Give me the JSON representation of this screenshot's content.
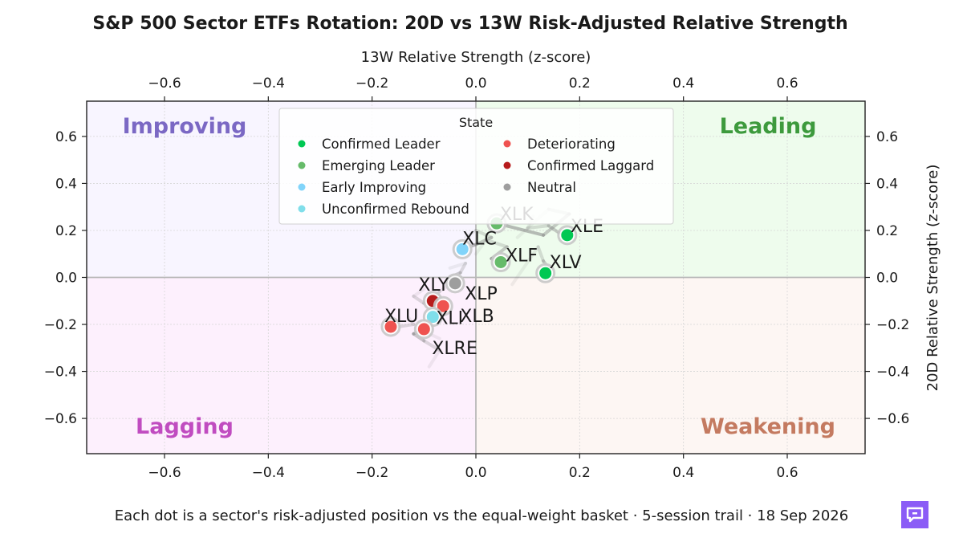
{
  "chart_data": {
    "type": "scatter",
    "title": "S&P 500 Sector ETFs Rotation: 20D vs 13W Risk-Adjusted Relative Strength",
    "xlabel": "13W Relative Strength (z-score)",
    "ylabel": "20D Relative Strength (z-score)",
    "xlim": [
      -0.75,
      0.75
    ],
    "ylim": [
      -0.75,
      0.75
    ],
    "x_ticks": [
      -0.6,
      -0.4,
      -0.2,
      0.0,
      0.2,
      0.4,
      0.6
    ],
    "y_ticks": [
      -0.6,
      -0.4,
      -0.2,
      0.0,
      0.2,
      0.4,
      0.6
    ],
    "x_tick_labels": [
      "−0.6",
      "−0.4",
      "−0.2",
      "0.0",
      "0.2",
      "0.4",
      "0.6"
    ],
    "y_tick_labels": [
      "−0.6",
      "−0.4",
      "−0.2",
      "0.0",
      "0.2",
      "0.4",
      "0.6"
    ],
    "grid": true,
    "quadrants": {
      "top_left": {
        "label": "Improving",
        "color": "#7b68c4",
        "fill": "#f8f5ff"
      },
      "top_right": {
        "label": "Leading",
        "color": "#3d9a3d",
        "fill": "#eefced"
      },
      "bottom_left": {
        "label": "Lagging",
        "color": "#c04cc0",
        "fill": "#fdf0fd"
      },
      "bottom_right": {
        "label": "Weakening",
        "color": "#c47a60",
        "fill": "#fdf6f3"
      }
    },
    "legend": {
      "title": "State",
      "placement": "top-center",
      "entries": [
        {
          "label": "Confirmed Leader",
          "color": "#00c853"
        },
        {
          "label": "Emerging Leader",
          "color": "#66bb6a"
        },
        {
          "label": "Early Improving",
          "color": "#81d4fa"
        },
        {
          "label": "Unconfirmed Rebound",
          "color": "#80deea"
        },
        {
          "label": "Deteriorating",
          "color": "#ef5350"
        },
        {
          "label": "Confirmed Laggard",
          "color": "#b71c1c"
        },
        {
          "label": "Neutral",
          "color": "#9e9e9e"
        }
      ]
    },
    "series": [
      {
        "ticker": "XLK",
        "state": "Emerging Leader",
        "color": "#66bb6a",
        "x": 0.04,
        "y": 0.23,
        "trail": [
          [
            0.08,
            0.17
          ],
          [
            0.14,
            0.29
          ],
          [
            0.18,
            0.27
          ],
          [
            0.13,
            0.18
          ],
          [
            0.04,
            0.23
          ]
        ]
      },
      {
        "ticker": "XLE",
        "state": "Confirmed Leader",
        "color": "#00c853",
        "x": 0.176,
        "y": 0.18,
        "trail": [
          [
            0.11,
            0.26
          ],
          [
            0.1,
            0.21
          ],
          [
            0.14,
            0.22
          ],
          [
            0.16,
            0.19
          ],
          [
            0.176,
            0.18
          ]
        ]
      },
      {
        "ticker": "XLC",
        "state": "Early Improving",
        "color": "#81d4fa",
        "x": -0.026,
        "y": 0.12,
        "trail": [
          [
            -0.02,
            0.17
          ],
          [
            0.0,
            0.2
          ],
          [
            0.03,
            0.17
          ],
          [
            0.0,
            0.14
          ],
          [
            -0.026,
            0.12
          ]
        ]
      },
      {
        "ticker": "XLF",
        "state": "Emerging Leader",
        "color": "#66bb6a",
        "x": 0.048,
        "y": 0.065,
        "trail": [
          [
            0.0,
            0.1
          ],
          [
            0.02,
            0.16
          ],
          [
            0.06,
            0.13
          ],
          [
            0.03,
            0.08
          ],
          [
            0.048,
            0.065
          ]
        ]
      },
      {
        "ticker": "XLV",
        "state": "Confirmed Leader",
        "color": "#00c853",
        "x": 0.134,
        "y": 0.018,
        "trail": [
          [
            0.07,
            -0.03
          ],
          [
            0.12,
            0.13
          ],
          [
            0.13,
            0.07
          ],
          [
            0.14,
            0.04
          ],
          [
            0.134,
            0.018
          ]
        ]
      },
      {
        "ticker": "XLP",
        "state": "Neutral",
        "color": "#9e9e9e",
        "x": -0.04,
        "y": -0.025,
        "trail": [
          [
            -0.05,
            0.04
          ],
          [
            -0.02,
            0.06
          ],
          [
            -0.03,
            0.02
          ],
          [
            -0.05,
            0.0
          ],
          [
            -0.04,
            -0.025
          ]
        ]
      },
      {
        "ticker": "XLY",
        "state": "Confirmed Laggard",
        "color": "#b71c1c",
        "x": -0.083,
        "y": -0.1,
        "trail": [
          [
            -0.1,
            -0.05
          ],
          [
            -0.12,
            -0.08
          ],
          [
            -0.1,
            -0.11
          ],
          [
            -0.09,
            -0.09
          ],
          [
            -0.083,
            -0.1
          ]
        ]
      },
      {
        "ticker": "XLB",
        "state": "Deteriorating",
        "color": "#ef5350",
        "x": -0.063,
        "y": -0.122,
        "trail": [
          [
            -0.05,
            -0.03
          ],
          [
            -0.07,
            -0.06
          ],
          [
            -0.08,
            -0.09
          ],
          [
            -0.07,
            -0.1
          ],
          [
            -0.063,
            -0.122
          ]
        ]
      },
      {
        "ticker": "XLI",
        "state": "Unconfirmed Rebound",
        "color": "#80deea",
        "x": -0.083,
        "y": -0.168,
        "trail": [
          [
            -0.07,
            -0.26
          ],
          [
            -0.09,
            -0.24
          ],
          [
            -0.1,
            -0.2
          ],
          [
            -0.09,
            -0.18
          ],
          [
            -0.083,
            -0.168
          ]
        ]
      },
      {
        "ticker": "XLU",
        "state": "Deteriorating",
        "color": "#ef5350",
        "x": -0.164,
        "y": -0.21,
        "trail": [
          [
            -0.13,
            -0.17
          ],
          [
            -0.12,
            -0.2
          ],
          [
            -0.15,
            -0.21
          ],
          [
            -0.16,
            -0.2
          ],
          [
            -0.164,
            -0.21
          ]
        ]
      },
      {
        "ticker": "XLRE",
        "state": "Deteriorating",
        "color": "#ef5350",
        "x": -0.1,
        "y": -0.22,
        "trail": [
          [
            -0.09,
            -0.38
          ],
          [
            -0.07,
            -0.31
          ],
          [
            -0.1,
            -0.27
          ],
          [
            -0.12,
            -0.24
          ],
          [
            -0.1,
            -0.22
          ]
        ]
      }
    ],
    "footer": "Each dot is a sector's risk-adjusted position vs the equal-weight basket · 5-session trail · 18 Sep 2026"
  },
  "brand": {
    "icon": "chat-bubble-icon",
    "color": "#8b5cf6"
  }
}
